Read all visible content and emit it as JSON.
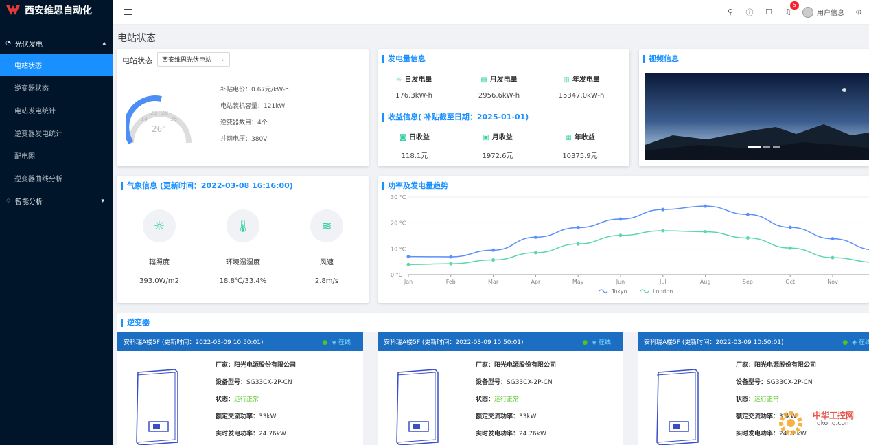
{
  "app": {
    "title": "西安维思自动化"
  },
  "sidebar": {
    "group1": "光伏发电",
    "items": [
      "电站状态",
      "逆变器状态",
      "电站发电统计",
      "逆变器发电统计",
      "配电图",
      "逆变器曲线分析"
    ],
    "group2": "智能分析"
  },
  "topbar": {
    "badge": "5",
    "user": "用户信息"
  },
  "page": {
    "title": "电站状态"
  },
  "station": {
    "label": "电站状态",
    "select": "西安维思光伏电站",
    "gauge": {
      "value": "26°",
      "ticks": [
        "14",
        "21",
        "28",
        "35"
      ]
    },
    "subsidy": "补贴电价：0.67元/kW-h",
    "capacity": "电站装机容量：121kW",
    "inverters": "逆变器数目：4个",
    "voltage": "并网电压：380V"
  },
  "power": {
    "title": "发电量信息",
    "stats": [
      {
        "label": "日发电量",
        "value": "176.3kW-h"
      },
      {
        "label": "月发电量",
        "value": "2956.6kW-h"
      },
      {
        "label": "年发电量",
        "value": "15347.0kW-h"
      }
    ],
    "income_title": "收益信息( 补贴截至日期：2025-01-01)",
    "income": [
      {
        "label": "日收益",
        "value": "118.1元"
      },
      {
        "label": "月收益",
        "value": "1972.6元"
      },
      {
        "label": "年收益",
        "value": "10375.9元"
      }
    ]
  },
  "video": {
    "title": "视频信息"
  },
  "weather": {
    "title": "气象信息 (更新时间：2022-03-08 16:16:00)",
    "items": [
      {
        "label": "辐照度",
        "value": "393.0W/m2",
        "icon": "sun-icon"
      },
      {
        "label": "环境温湿度",
        "value": "18.8℃/33.4%",
        "icon": "thermometer-icon"
      },
      {
        "label": "风速",
        "value": "2.8m/s",
        "icon": "wind-icon"
      }
    ]
  },
  "trend": {
    "title": "功率及发电量趋势"
  },
  "chart_data": {
    "type": "line",
    "categories": [
      "Jan",
      "Feb",
      "Mar",
      "Apr",
      "May",
      "Jun",
      "Jul",
      "Aug",
      "Sep",
      "Oct",
      "Nov",
      "Dec"
    ],
    "series": [
      {
        "name": "Tokyo",
        "values": [
          7.0,
          6.9,
          9.5,
          14.5,
          18.2,
          21.5,
          25.2,
          26.5,
          23.3,
          18.3,
          13.9,
          9.6
        ],
        "color": "#5b8ff9"
      },
      {
        "name": "London",
        "values": [
          3.9,
          4.2,
          5.7,
          8.5,
          11.9,
          15.2,
          17.0,
          16.6,
          14.2,
          10.3,
          6.6,
          4.8
        ],
        "color": "#5ad8a6"
      }
    ],
    "yticks": [
      "0 °C",
      "10 °C",
      "20 °C",
      "30 °C"
    ],
    "ylim": [
      0,
      30
    ]
  },
  "inverter_section": {
    "title": "逆变器"
  },
  "inverters": [
    {
      "head": "安科瑞A楼5F (更新时间：2022-03-09 10:50:01)",
      "status": "在线",
      "maker": "阳光电源股份有限公司",
      "model": "SG33CX-2P-CN",
      "state": "运行正常",
      "rated": "33kW",
      "realtime": "24.76kW"
    },
    {
      "head": "安科瑞A楼5F (更新时间：2022-03-09 10:50:01)",
      "status": "在线",
      "maker": "阳光电源股份有限公司",
      "model": "SG33CX-2P-CN",
      "state": "运行正常",
      "rated": "33kW",
      "realtime": "24.76kW"
    },
    {
      "head": "安科瑞A楼5F (更新时间：2022-03-09 10:50:01)",
      "status": "在线",
      "maker": "阳光电源股份有限公司",
      "model": "SG33CX-2P-CN",
      "state": "运行正常",
      "rated": "33kW",
      "realtime": "24.76kW"
    }
  ],
  "labels": {
    "maker": "厂家：",
    "model": "设备型号：",
    "state": "状态：",
    "rated": "额定交流功率：",
    "realtime": "实时发电功率："
  },
  "watermark": {
    "text": "中华工控网",
    "sub": "gkong.com"
  }
}
